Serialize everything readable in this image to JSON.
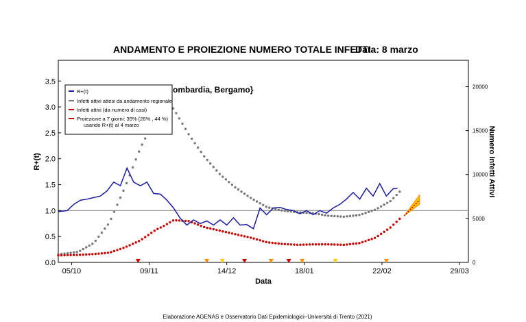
{
  "chart_data": {
    "type": "line",
    "title": "ANDAMENTO E PROIEZIONE NUMERO TOTALE INFETTI",
    "date_label": "Data: 8 marzo",
    "region_label": "{Lombardia, Bergamo}",
    "xlabel": "Data",
    "ylabel_left": "R+(t)",
    "ylabel_right": "Numero Infetti Attivi",
    "footer": "Elaborazione AGENAS e Osservatorio Dati Epidemiologici–Università di Trento (2021)",
    "x_ticks": [
      "05/10",
      "09/11",
      "14/12",
      "18/01",
      "22/02",
      "29/03"
    ],
    "x_tick_dates": [
      "2020-10-05",
      "2020-11-09",
      "2020-12-14",
      "2021-01-18",
      "2021-02-22",
      "2021-03-29"
    ],
    "x_range": [
      "2020-09-29",
      "2021-04-02"
    ],
    "ylim_left": [
      0,
      3.9
    ],
    "yticks_left": [
      "0.0",
      "0.5",
      "1.0",
      "1.5",
      "2.0",
      "2.5",
      "3.0",
      "3.5"
    ],
    "ylim_right": [
      0,
      23000
    ],
    "yticks_right": [
      "0",
      "5000",
      "10000",
      "15000",
      "20000"
    ],
    "reference_line": 1.0,
    "legend_position": "top-left",
    "legend": [
      {
        "label": "R+(t)",
        "color": "#1a1aa0"
      },
      {
        "label": "Infetti attivi attesi da andamento regionale",
        "color": "#777777"
      },
      {
        "label": "Infetti attivi (da numero di casi)",
        "color": "#cc0000"
      },
      {
        "label": "Proiezione a 7 giorni: 35% (26% , 44 %)",
        "label2": "usando R+(t) al 4 marzo",
        "color": "#cc0000"
      }
    ],
    "series": [
      {
        "name": "R+(t)",
        "axis": "left",
        "color": "#1a1aa0",
        "points": [
          [
            "2020-09-29",
            0.98
          ],
          [
            "2020-10-03",
            1.0
          ],
          [
            "2020-10-06",
            1.12
          ],
          [
            "2020-10-09",
            1.2
          ],
          [
            "2020-10-12",
            1.22
          ],
          [
            "2020-10-15",
            1.25
          ],
          [
            "2020-10-18",
            1.28
          ],
          [
            "2020-10-21",
            1.38
          ],
          [
            "2020-10-24",
            1.55
          ],
          [
            "2020-10-27",
            1.48
          ],
          [
            "2020-10-30",
            1.82
          ],
          [
            "2020-11-02",
            1.55
          ],
          [
            "2020-11-05",
            1.48
          ],
          [
            "2020-11-08",
            1.55
          ],
          [
            "2020-11-11",
            1.33
          ],
          [
            "2020-11-14",
            1.32
          ],
          [
            "2020-11-17",
            1.2
          ],
          [
            "2020-11-20",
            1.05
          ],
          [
            "2020-11-23",
            0.85
          ],
          [
            "2020-11-26",
            0.72
          ],
          [
            "2020-11-29",
            0.82
          ],
          [
            "2020-12-02",
            0.75
          ],
          [
            "2020-12-05",
            0.8
          ],
          [
            "2020-12-08",
            0.72
          ],
          [
            "2020-12-11",
            0.82
          ],
          [
            "2020-12-14",
            0.72
          ],
          [
            "2020-12-17",
            0.86
          ],
          [
            "2020-12-20",
            0.72
          ],
          [
            "2020-12-23",
            0.73
          ],
          [
            "2020-12-26",
            0.65
          ],
          [
            "2020-12-29",
            1.05
          ],
          [
            "2021-01-01",
            0.92
          ],
          [
            "2021-01-04",
            1.05
          ],
          [
            "2021-01-07",
            1.06
          ],
          [
            "2021-01-10",
            1.02
          ],
          [
            "2021-01-13",
            1.0
          ],
          [
            "2021-01-16",
            0.94
          ],
          [
            "2021-01-19",
            1.0
          ],
          [
            "2021-01-22",
            0.92
          ],
          [
            "2021-01-25",
            1.0
          ],
          [
            "2021-01-28",
            0.95
          ],
          [
            "2021-01-31",
            1.05
          ],
          [
            "2021-02-03",
            1.12
          ],
          [
            "2021-02-06",
            1.22
          ],
          [
            "2021-02-09",
            1.35
          ],
          [
            "2021-02-12",
            1.22
          ],
          [
            "2021-02-15",
            1.43
          ],
          [
            "2021-02-18",
            1.28
          ],
          [
            "2021-02-21",
            1.52
          ],
          [
            "2021-02-24",
            1.28
          ],
          [
            "2021-02-27",
            1.42
          ],
          [
            "2021-03-01",
            1.43
          ]
        ]
      },
      {
        "name": "Infetti attivi attesi da andamento regionale",
        "axis": "right",
        "color": "#777777",
        "points": [
          [
            "2020-09-29",
            900
          ],
          [
            "2020-10-08",
            1200
          ],
          [
            "2020-10-15",
            2200
          ],
          [
            "2020-10-22",
            4500
          ],
          [
            "2020-10-29",
            8500
          ],
          [
            "2020-11-05",
            13000
          ],
          [
            "2020-11-12",
            16500
          ],
          [
            "2020-11-16",
            18000
          ],
          [
            "2020-11-20",
            17500
          ],
          [
            "2020-11-27",
            14500
          ],
          [
            "2020-12-04",
            12000
          ],
          [
            "2020-12-11",
            10000
          ],
          [
            "2020-12-18",
            8500
          ],
          [
            "2020-12-25",
            7300
          ],
          [
            "2021-01-01",
            6300
          ],
          [
            "2021-01-08",
            5900
          ],
          [
            "2021-01-15",
            5700
          ],
          [
            "2021-01-22",
            5600
          ],
          [
            "2021-01-29",
            5300
          ],
          [
            "2021-02-05",
            5200
          ],
          [
            "2021-02-12",
            5400
          ],
          [
            "2021-02-19",
            6000
          ],
          [
            "2021-02-26",
            7000
          ],
          [
            "2021-03-03",
            8300
          ]
        ]
      },
      {
        "name": "Infetti attivi (da numero di casi)",
        "axis": "right",
        "color": "#cc0000",
        "points": [
          [
            "2020-09-29",
            800
          ],
          [
            "2020-10-08",
            850
          ],
          [
            "2020-10-15",
            950
          ],
          [
            "2020-10-22",
            1100
          ],
          [
            "2020-10-29",
            1700
          ],
          [
            "2020-11-05",
            2500
          ],
          [
            "2020-11-12",
            3700
          ],
          [
            "2020-11-16",
            4200
          ],
          [
            "2020-11-20",
            4800
          ],
          [
            "2020-11-27",
            4700
          ],
          [
            "2020-12-04",
            4000
          ],
          [
            "2020-12-11",
            3600
          ],
          [
            "2020-12-18",
            3200
          ],
          [
            "2020-12-25",
            2800
          ],
          [
            "2021-01-01",
            2300
          ],
          [
            "2021-01-08",
            2100
          ],
          [
            "2021-01-15",
            2000
          ],
          [
            "2021-01-22",
            2050
          ],
          [
            "2021-01-29",
            2050
          ],
          [
            "2021-02-05",
            2000
          ],
          [
            "2021-02-12",
            2200
          ],
          [
            "2021-02-19",
            2800
          ],
          [
            "2021-02-26",
            4000
          ],
          [
            "2021-03-03",
            5200
          ]
        ]
      },
      {
        "name": "Proiezione a 7 giorni",
        "axis": "right",
        "color": "#cc0000",
        "center": [
          [
            "2021-03-04",
            5300
          ],
          [
            "2021-03-11",
            7100
          ]
        ],
        "upper": [
          [
            "2021-03-04",
            5300
          ],
          [
            "2021-03-11",
            7700
          ]
        ],
        "lower": [
          [
            "2021-03-04",
            5300
          ],
          [
            "2021-03-11",
            6600
          ]
        ]
      }
    ],
    "markers": [
      {
        "date": "2020-11-04",
        "color": "#cc0000"
      },
      {
        "date": "2020-12-05",
        "color": "#ff8c00"
      },
      {
        "date": "2020-12-12",
        "color": "#ffd000"
      },
      {
        "date": "2020-12-22",
        "color": "#cc0000"
      },
      {
        "date": "2021-01-03",
        "color": "#ff8c00"
      },
      {
        "date": "2021-01-11",
        "color": "#cc0000"
      },
      {
        "date": "2021-01-17",
        "color": "#ff8c00"
      },
      {
        "date": "2021-02-01",
        "color": "#ffd000"
      },
      {
        "date": "2021-02-24",
        "color": "#ff8c00"
      }
    ]
  }
}
